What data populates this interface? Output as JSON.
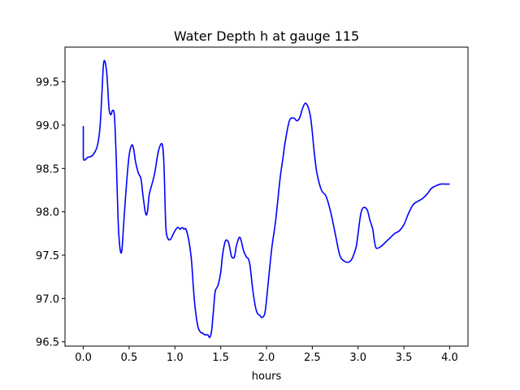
{
  "chart_data": {
    "type": "line",
    "title": "Water Depth h at gauge 115",
    "xlabel": "hours",
    "ylabel": "",
    "xlim": [
      -0.2,
      4.2
    ],
    "ylim": [
      96.45,
      99.9
    ],
    "xticks": [
      0.0,
      0.5,
      1.0,
      1.5,
      2.0,
      2.5,
      3.0,
      3.5,
      4.0
    ],
    "xtick_labels": [
      "0.0",
      "0.5",
      "1.0",
      "1.5",
      "2.0",
      "2.5",
      "3.0",
      "3.5",
      "4.0"
    ],
    "yticks": [
      96.5,
      97.0,
      97.5,
      98.0,
      98.5,
      99.0,
      99.5
    ],
    "ytick_labels": [
      "96.5",
      "97.0",
      "97.5",
      "98.0",
      "98.5",
      "99.0",
      "99.5"
    ],
    "grid": false,
    "series": [
      {
        "color": "#0000ff",
        "x": [
          0.0,
          0.0,
          0.05,
          0.1,
          0.15,
          0.18,
          0.2,
          0.22,
          0.24,
          0.26,
          0.28,
          0.3,
          0.32,
          0.34,
          0.36,
          0.38,
          0.4,
          0.42,
          0.44,
          0.47,
          0.5,
          0.53,
          0.55,
          0.57,
          0.6,
          0.63,
          0.65,
          0.68,
          0.7,
          0.72,
          0.75,
          0.78,
          0.82,
          0.86,
          0.88,
          0.9,
          0.92,
          0.95,
          0.98,
          1.0,
          1.03,
          1.06,
          1.08,
          1.1,
          1.12,
          1.15,
          1.18,
          1.2,
          1.22,
          1.25,
          1.28,
          1.3,
          1.33,
          1.36,
          1.38,
          1.4,
          1.42,
          1.44,
          1.47,
          1.5,
          1.52,
          1.55,
          1.58,
          1.6,
          1.62,
          1.65,
          1.67,
          1.7,
          1.72,
          1.75,
          1.78,
          1.8,
          1.82,
          1.85,
          1.88,
          1.9,
          1.93,
          1.95,
          1.98,
          2.0,
          2.03,
          2.06,
          2.1,
          2.15,
          2.18,
          2.2,
          2.25,
          2.3,
          2.33,
          2.36,
          2.39,
          2.42,
          2.45,
          2.48,
          2.5,
          2.52,
          2.55,
          2.6,
          2.65,
          2.7,
          2.75,
          2.8,
          2.85,
          2.9,
          2.93,
          2.95,
          2.98,
          3.0,
          3.03,
          3.06,
          3.1,
          3.13,
          3.16,
          3.18,
          3.2,
          3.25,
          3.3,
          3.35,
          3.4,
          3.45,
          3.5,
          3.55,
          3.6,
          3.65,
          3.7,
          3.75,
          3.8,
          3.85,
          3.9,
          3.95,
          4.0
        ],
        "y": [
          98.99,
          98.62,
          98.63,
          98.65,
          98.75,
          98.95,
          99.3,
          99.7,
          99.72,
          99.55,
          99.2,
          99.12,
          99.17,
          99.1,
          98.6,
          97.9,
          97.58,
          97.55,
          97.85,
          98.3,
          98.65,
          98.77,
          98.72,
          98.58,
          98.45,
          98.38,
          98.2,
          97.98,
          98.0,
          98.2,
          98.32,
          98.45,
          98.7,
          98.78,
          98.55,
          97.85,
          97.7,
          97.68,
          97.74,
          97.78,
          97.82,
          97.8,
          97.82,
          97.8,
          97.8,
          97.68,
          97.45,
          97.15,
          96.9,
          96.68,
          96.61,
          96.6,
          96.58,
          96.58,
          96.55,
          96.62,
          96.85,
          97.08,
          97.15,
          97.3,
          97.5,
          97.66,
          97.66,
          97.58,
          97.48,
          97.48,
          97.6,
          97.7,
          97.68,
          97.55,
          97.48,
          97.46,
          97.38,
          97.1,
          96.9,
          96.83,
          96.8,
          96.78,
          96.82,
          96.98,
          97.3,
          97.6,
          97.9,
          98.4,
          98.62,
          98.78,
          99.05,
          99.08,
          99.05,
          99.08,
          99.18,
          99.25,
          99.22,
          99.1,
          98.92,
          98.7,
          98.45,
          98.25,
          98.18,
          98.0,
          97.75,
          97.5,
          97.43,
          97.42,
          97.45,
          97.5,
          97.6,
          97.75,
          97.98,
          98.05,
          98.02,
          97.9,
          97.8,
          97.65,
          97.58,
          97.6,
          97.65,
          97.7,
          97.75,
          97.78,
          97.85,
          97.98,
          98.08,
          98.12,
          98.15,
          98.2,
          98.27,
          98.3,
          98.32,
          98.32,
          98.32
        ]
      }
    ]
  }
}
